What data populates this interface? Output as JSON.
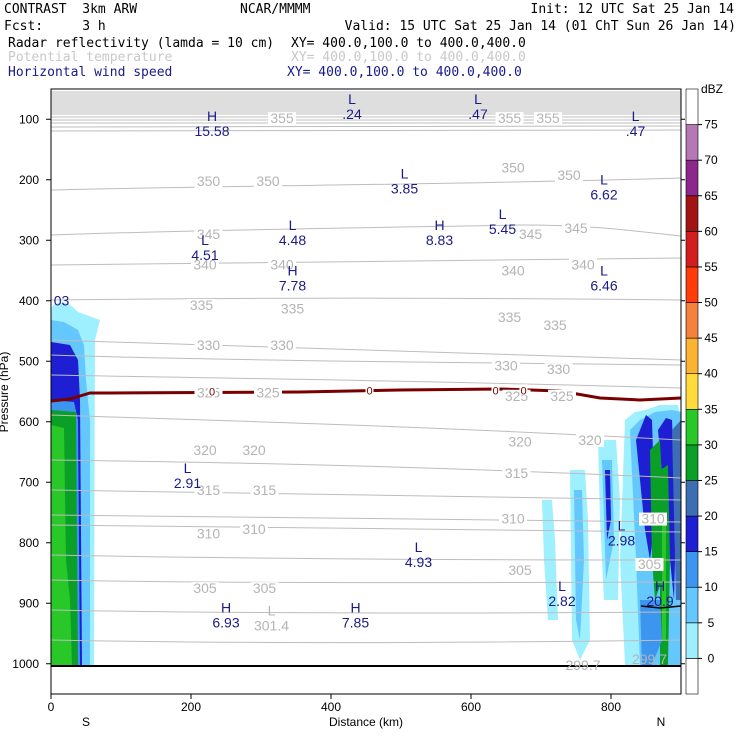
{
  "header": {
    "line1_left": "CONTRAST  3km ARW",
    "line1_mid": "NCAR/MMMM",
    "line1_right": "Init: 12 UTC Sat 25 Jan 14",
    "line2_left": "Fcst:     3 h",
    "line2_right": "Valid: 15 UTC Sat 25 Jan 14 (01 ChT Sun 26 Jan 14)",
    "field1_name": "Radar reflectivity (lamda = 10 cm)",
    "field1_xy": "XY= 400.0,100.0 to 400.0,400.0",
    "field2_name": "Potential temperature",
    "field2_xy": "XY= 400.0,100.0 to 400.0,400.0",
    "field3_name": "Horizontal wind speed",
    "field3_xy": "XY= 400.0,100.0 to 400.0,400.0"
  },
  "chart_data": {
    "type": "cross-section",
    "xlabel": "Distance (km)",
    "ylabel": "Pressure (hPa)",
    "xlim": [
      0,
      900
    ],
    "ylim": [
      1050,
      50
    ],
    "x_ticks": [
      0,
      200,
      400,
      600,
      800
    ],
    "y_ticks": [
      100,
      200,
      300,
      400,
      500,
      600,
      700,
      800,
      900,
      1000
    ],
    "x_end_labels": {
      "left": "S",
      "right": "N"
    },
    "colorbar": {
      "units": "dBZ",
      "levels": [
        0,
        5,
        10,
        15,
        20,
        25,
        30,
        35,
        40,
        45,
        50,
        55,
        60,
        65,
        70,
        75
      ],
      "colors": [
        "#ffffff",
        "#9ff0ff",
        "#64c8ff",
        "#3c96f0",
        "#1e1ed2",
        "#3c6eb4",
        "#0aa028",
        "#28c828",
        "#ffdc3c",
        "#fab432",
        "#f5823c",
        "#ff3c0a",
        "#d21e1e",
        "#a01414",
        "#8c288c",
        "#b478b4",
        "#ffffff"
      ]
    },
    "theta_labels": [
      {
        "v": "355",
        "x": 330,
        "p": 103
      },
      {
        "v": "355",
        "x": 655,
        "p": 103
      },
      {
        "v": "355",
        "x": 710,
        "p": 103
      },
      {
        "v": "350",
        "x": 225,
        "p": 207
      },
      {
        "v": "350",
        "x": 310,
        "p": 207
      },
      {
        "v": "350",
        "x": 660,
        "p": 185
      },
      {
        "v": "350",
        "x": 740,
        "p": 197
      },
      {
        "v": "345",
        "x": 225,
        "p": 295
      },
      {
        "v": "345",
        "x": 685,
        "p": 295
      },
      {
        "v": "345",
        "x": 750,
        "p": 285
      },
      {
        "v": "340",
        "x": 220,
        "p": 345
      },
      {
        "v": "340",
        "x": 330,
        "p": 345
      },
      {
        "v": "340",
        "x": 660,
        "p": 355
      },
      {
        "v": "340",
        "x": 760,
        "p": 345
      },
      {
        "v": "335",
        "x": 215,
        "p": 412
      },
      {
        "v": "335",
        "x": 345,
        "p": 418
      },
      {
        "v": "335",
        "x": 655,
        "p": 432
      },
      {
        "v": "335",
        "x": 720,
        "p": 445
      },
      {
        "v": "330",
        "x": 225,
        "p": 478
      },
      {
        "v": "330",
        "x": 330,
        "p": 478
      },
      {
        "v": "330",
        "x": 650,
        "p": 512
      },
      {
        "v": "330",
        "x": 725,
        "p": 518
      },
      {
        "v": "325",
        "x": 225,
        "p": 557
      },
      {
        "v": "325",
        "x": 310,
        "p": 557
      },
      {
        "v": "325",
        "x": 665,
        "p": 562
      },
      {
        "v": "325",
        "x": 730,
        "p": 562
      },
      {
        "v": "320",
        "x": 220,
        "p": 652
      },
      {
        "v": "320",
        "x": 290,
        "p": 652
      },
      {
        "v": "320",
        "x": 670,
        "p": 638
      },
      {
        "v": "320",
        "x": 770,
        "p": 635
      },
      {
        "v": "315",
        "x": 225,
        "p": 718
      },
      {
        "v": "315",
        "x": 305,
        "p": 718
      },
      {
        "v": "315",
        "x": 665,
        "p": 690
      },
      {
        "v": "310",
        "x": 225,
        "p": 790
      },
      {
        "v": "310",
        "x": 290,
        "p": 782
      },
      {
        "v": "310",
        "x": 660,
        "p": 765
      },
      {
        "v": "310",
        "x": 860,
        "p": 765
      },
      {
        "v": "305",
        "x": 220,
        "p": 880
      },
      {
        "v": "305",
        "x": 305,
        "p": 880
      },
      {
        "v": "305",
        "x": 670,
        "p": 850
      },
      {
        "v": "305",
        "x": 855,
        "p": 840
      }
    ],
    "extrema": [
      {
        "k": "H",
        "v": "15.58",
        "x": 230,
        "p": 103,
        "c": "b"
      },
      {
        "k": "L",
        "v": ".24",
        "x": 430,
        "p": 75,
        "c": "b"
      },
      {
        "k": "L",
        "v": ".47",
        "x": 610,
        "p": 75,
        "c": "b"
      },
      {
        "k": "L",
        "v": ".47",
        "x": 835,
        "p": 103,
        "c": "b"
      },
      {
        "k": "L",
        "v": "3.85",
        "x": 505,
        "p": 198,
        "c": "b"
      },
      {
        "k": "L",
        "v": "6.62",
        "x": 790,
        "p": 208,
        "c": "b"
      },
      {
        "k": "H",
        "v": "8.83",
        "x": 555,
        "p": 283,
        "c": "b"
      },
      {
        "k": "L",
        "v": "5.45",
        "x": 645,
        "p": 265,
        "c": "b"
      },
      {
        "k": "L",
        "v": "4.48",
        "x": 345,
        "p": 283,
        "c": "b"
      },
      {
        "k": "L",
        "v": "4.51",
        "x": 220,
        "p": 308,
        "c": "b"
      },
      {
        "k": "H",
        "v": "7.78",
        "x": 345,
        "p": 358,
        "c": "b"
      },
      {
        "k": "L",
        "v": "6.46",
        "x": 790,
        "p": 358,
        "c": "b"
      },
      {
        "k": "L",
        "v": "2.91",
        "x": 195,
        "p": 685,
        "c": "b"
      },
      {
        "k": "L",
        "v": "4.93",
        "x": 525,
        "p": 815,
        "c": "b"
      },
      {
        "k": "L",
        "v": "2.98",
        "x": 815,
        "p": 780,
        "c": "b"
      },
      {
        "k": "L",
        "v": "2.82",
        "x": 730,
        "p": 880,
        "c": "b"
      },
      {
        "k": "H",
        "v": "20.9",
        "x": 870,
        "p": 880,
        "c": "b"
      },
      {
        "k": "H",
        "v": "6.93",
        "x": 250,
        "p": 915,
        "c": "b"
      },
      {
        "k": "H",
        "v": "7.85",
        "x": 435,
        "p": 915,
        "c": "b"
      },
      {
        "k": "L",
        "v": "301.4",
        "x": 315,
        "p": 920,
        "c": "g"
      }
    ],
    "clipped_labels": [
      {
        "v": "03",
        "x": 15,
        "p": 408,
        "c": "b"
      },
      {
        "v": "299.7",
        "x": 760,
        "p": 1010,
        "c": "g"
      },
      {
        "v": "299.7",
        "x": 855,
        "p": 1000,
        "c": "g"
      }
    ],
    "zero_labels": [
      {
        "v": "0",
        "x": 230,
        "p": 550
      },
      {
        "v": "0",
        "x": 455,
        "p": 548
      },
      {
        "v": "0",
        "x": 635,
        "p": 548
      },
      {
        "v": "0",
        "x": 675,
        "p": 548
      }
    ]
  }
}
